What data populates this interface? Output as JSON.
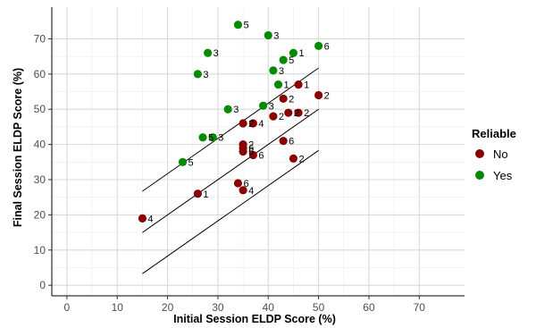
{
  "chart_data": {
    "type": "scatter",
    "xlabel": "Initial Session ELDP Score (%)",
    "ylabel": "Final Session ELDP Score (%)",
    "xlim": [
      -3,
      79
    ],
    "ylim": [
      -3,
      79
    ],
    "xticks": [
      0,
      10,
      20,
      30,
      40,
      50,
      60,
      70
    ],
    "yticks": [
      0,
      10,
      20,
      30,
      40,
      50,
      60,
      70
    ],
    "grid": true,
    "legend": {
      "title": "Reliable",
      "placement": "right",
      "entries": [
        {
          "key": "No",
          "label": "No",
          "color": "#8b0000"
        },
        {
          "key": "Yes",
          "label": "Yes",
          "color": "#008b00"
        }
      ]
    },
    "regression_lines": [
      {
        "x": [
          15,
          50
        ],
        "y": [
          26.7,
          61.7
        ]
      },
      {
        "x": [
          15,
          50
        ],
        "y": [
          15.0,
          50.0
        ]
      },
      {
        "x": [
          15,
          50
        ],
        "y": [
          3.3,
          38.3
        ]
      }
    ],
    "points": [
      {
        "x": 34,
        "y": 74,
        "label": "5",
        "group": "Yes"
      },
      {
        "x": 40,
        "y": 71,
        "label": "3",
        "group": "Yes"
      },
      {
        "x": 50,
        "y": 68,
        "label": "6",
        "group": "Yes"
      },
      {
        "x": 28,
        "y": 66,
        "label": "3",
        "group": "Yes"
      },
      {
        "x": 45,
        "y": 66,
        "label": "1",
        "group": "Yes"
      },
      {
        "x": 43,
        "y": 64,
        "label": "5",
        "group": "Yes"
      },
      {
        "x": 41,
        "y": 61,
        "label": "3",
        "group": "Yes"
      },
      {
        "x": 26,
        "y": 60,
        "label": "3",
        "group": "Yes"
      },
      {
        "x": 42,
        "y": 57,
        "label": "1",
        "group": "Yes"
      },
      {
        "x": 39,
        "y": 51,
        "label": "3",
        "group": "Yes"
      },
      {
        "x": 32,
        "y": 50,
        "label": "3",
        "group": "Yes"
      },
      {
        "x": 27,
        "y": 42,
        "label": "5",
        "group": "Yes"
      },
      {
        "x": 29,
        "y": 42,
        "label": "3",
        "group": "Yes"
      },
      {
        "x": 23,
        "y": 35,
        "label": "5",
        "group": "Yes"
      },
      {
        "x": 46,
        "y": 57,
        "label": "1",
        "group": "No"
      },
      {
        "x": 50,
        "y": 54,
        "label": "2",
        "group": "No"
      },
      {
        "x": 43,
        "y": 53,
        "label": "2",
        "group": "No"
      },
      {
        "x": 44,
        "y": 49,
        "label": "2",
        "group": "No"
      },
      {
        "x": 46,
        "y": 49,
        "label": "2",
        "group": "No"
      },
      {
        "x": 41,
        "y": 48,
        "label": "2",
        "group": "No"
      },
      {
        "x": 35,
        "y": 46,
        "label": "2",
        "group": "No"
      },
      {
        "x": 37,
        "y": 46,
        "label": "4",
        "group": "No"
      },
      {
        "x": 43,
        "y": 41,
        "label": "6",
        "group": "No"
      },
      {
        "x": 35,
        "y": 40,
        "label": "2",
        "group": "No"
      },
      {
        "x": 35,
        "y": 39,
        "label": "6",
        "group": "No"
      },
      {
        "x": 35,
        "y": 38,
        "label": "6",
        "group": "No"
      },
      {
        "x": 37,
        "y": 37,
        "label": "6",
        "group": "No"
      },
      {
        "x": 45,
        "y": 36,
        "label": "2",
        "group": "No"
      },
      {
        "x": 34,
        "y": 29,
        "label": "6",
        "group": "No"
      },
      {
        "x": 35,
        "y": 27,
        "label": "4",
        "group": "No"
      },
      {
        "x": 26,
        "y": 26,
        "label": "1",
        "group": "No"
      },
      {
        "x": 15,
        "y": 19,
        "label": "4",
        "group": "No"
      }
    ]
  }
}
